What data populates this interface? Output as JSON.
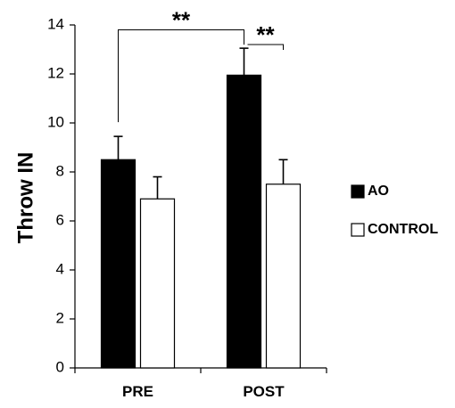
{
  "chart_data": {
    "type": "bar",
    "categories": [
      "PRE",
      "POST"
    ],
    "series": [
      {
        "name": "AO",
        "values": [
          8.5,
          11.95
        ],
        "errors": [
          0.95,
          1.1
        ],
        "fill": "#000000"
      },
      {
        "name": "CONTROL",
        "values": [
          6.9,
          7.5
        ],
        "errors": [
          0.9,
          1.0
        ],
        "fill": "#ffffff"
      }
    ],
    "ylabel": "Throw IN",
    "xlabel": "",
    "ylim": [
      0,
      14
    ],
    "yticks": [
      0,
      2,
      4,
      6,
      8,
      10,
      12,
      14
    ],
    "grid": false,
    "legend": "right",
    "annotations": [
      {
        "text": "**",
        "between": [
          "PRE AO",
          "POST AO"
        ]
      },
      {
        "text": "**",
        "between": [
          "POST AO",
          "POST CONTROL"
        ]
      }
    ]
  }
}
